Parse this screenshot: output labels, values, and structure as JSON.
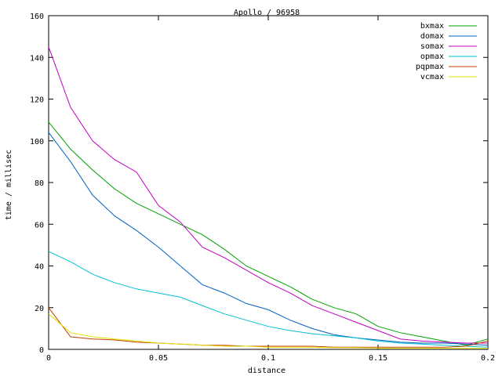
{
  "chart_data": {
    "type": "line",
    "title": "Apollo / 96958",
    "xlabel": "distance",
    "ylabel": "time / millisec",
    "xlim": [
      0,
      0.2
    ],
    "ylim": [
      0,
      160
    ],
    "x_ticks": [
      0,
      0.05,
      0.1,
      0.15,
      0.2
    ],
    "x_tick_labels": [
      "0",
      "0.05",
      "0.1",
      "0.15",
      "0.2"
    ],
    "y_ticks": [
      0,
      20,
      40,
      60,
      80,
      100,
      120,
      140,
      160
    ],
    "y_tick_labels": [
      "0",
      "20",
      "40",
      "60",
      "80",
      "100",
      "120",
      "140",
      "160"
    ],
    "grid": false,
    "legend_position": "top-right",
    "x": [
      0,
      0.01,
      0.02,
      0.03,
      0.04,
      0.05,
      0.06,
      0.07,
      0.08,
      0.09,
      0.1,
      0.11,
      0.12,
      0.13,
      0.14,
      0.15,
      0.16,
      0.17,
      0.18,
      0.19,
      0.2
    ],
    "series": [
      {
        "name": "bxmax",
        "color": "#00a000",
        "values": [
          109,
          96,
          86,
          77,
          70,
          65,
          60,
          55,
          48,
          40,
          35,
          30,
          24,
          20,
          17,
          11,
          8,
          6,
          4,
          2,
          5
        ]
      },
      {
        "name": "domax",
        "color": "#0060c0",
        "values": [
          104,
          90,
          74,
          64,
          57,
          49,
          40,
          31,
          27,
          22,
          19,
          14,
          10,
          7,
          5.5,
          4.5,
          3.5,
          3,
          3,
          2.5,
          2
        ]
      },
      {
        "name": "somax",
        "color": "#c000c0",
        "values": [
          145,
          116,
          100,
          91,
          85,
          69,
          61,
          49,
          44,
          38,
          32,
          27,
          21,
          17,
          13,
          9,
          5,
          4,
          3.5,
          3,
          3
        ]
      },
      {
        "name": "opmax",
        "color": "#00c0d0",
        "values": [
          47,
          42,
          36,
          32,
          29,
          27,
          25,
          21,
          17,
          14,
          11,
          9,
          7.5,
          6.5,
          5.5,
          4,
          3,
          2.5,
          2,
          1.5,
          1
        ]
      },
      {
        "name": "pqpmax",
        "color": "#c04000",
        "values": [
          20,
          6,
          5,
          4.5,
          3.5,
          3,
          2.5,
          2,
          2,
          1.5,
          1.5,
          1.5,
          1.5,
          1,
          1,
          1,
          1,
          1,
          1,
          1.5,
          4
        ]
      },
      {
        "name": "vcmax",
        "color": "#e0e000",
        "values": [
          17,
          8,
          6,
          5,
          4,
          3,
          2.5,
          2,
          1.5,
          1.5,
          1,
          1,
          1,
          0.8,
          0.8,
          0.6,
          0.5,
          0.5,
          0.5,
          0.5,
          0.5
        ]
      }
    ]
  }
}
